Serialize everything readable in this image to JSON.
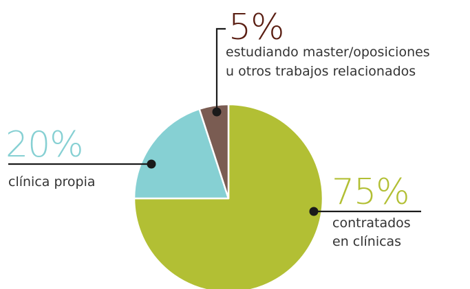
{
  "chart_data": {
    "type": "pie",
    "categories": [
      [
        "contratados",
        "en clínicas"
      ],
      [
        "clínica propia"
      ],
      [
        "estudiando master/oposiciones",
        "u otros trabajos relacionados"
      ]
    ],
    "values": [
      75,
      20,
      5
    ],
    "value_labels": [
      "75%",
      "20%",
      "5%"
    ],
    "colors": [
      "#b2bf34",
      "#86d0d3",
      "#7a5c52"
    ],
    "label_colors": [
      "#b2bf34",
      "#86d0d3",
      "#5a1e12"
    ]
  }
}
